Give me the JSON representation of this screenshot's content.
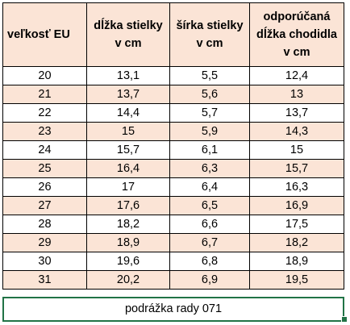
{
  "headers": [
    {
      "line1": "veľkosť EU",
      "line2": "",
      "line3": ""
    },
    {
      "line1": "dĺžka stielky",
      "line2": "v cm",
      "line3": ""
    },
    {
      "line1": "šírka stielky",
      "line2": "v cm",
      "line3": ""
    },
    {
      "line1": "odporúčaná",
      "line2": "dĺžka chodidla",
      "line3": "v cm"
    }
  ],
  "rows": [
    [
      "20",
      "13,1",
      "5,5",
      "12,4"
    ],
    [
      "21",
      "13,7",
      "5,6",
      "13"
    ],
    [
      "22",
      "14,4",
      "5,7",
      "13,7"
    ],
    [
      "23",
      "15",
      "5,9",
      "14,3"
    ],
    [
      "24",
      "15,7",
      "6,1",
      "15"
    ],
    [
      "25",
      "16,4",
      "6,3",
      "15,7"
    ],
    [
      "26",
      "17",
      "6,4",
      "16,3"
    ],
    [
      "27",
      "17,6",
      "6,5",
      "16,9"
    ],
    [
      "28",
      "18,2",
      "6,6",
      "17,5"
    ],
    [
      "29",
      "18,9",
      "6,7",
      "18,2"
    ],
    [
      "30",
      "19,6",
      "6,8",
      "18,9"
    ],
    [
      "31",
      "20,2",
      "6,9",
      "19,5"
    ]
  ],
  "footer": "podrážka rady 071",
  "colors": {
    "header_fill": "#fbe4d6",
    "stripe_fill": "#fbe4d6",
    "selection_border": "#217346"
  }
}
